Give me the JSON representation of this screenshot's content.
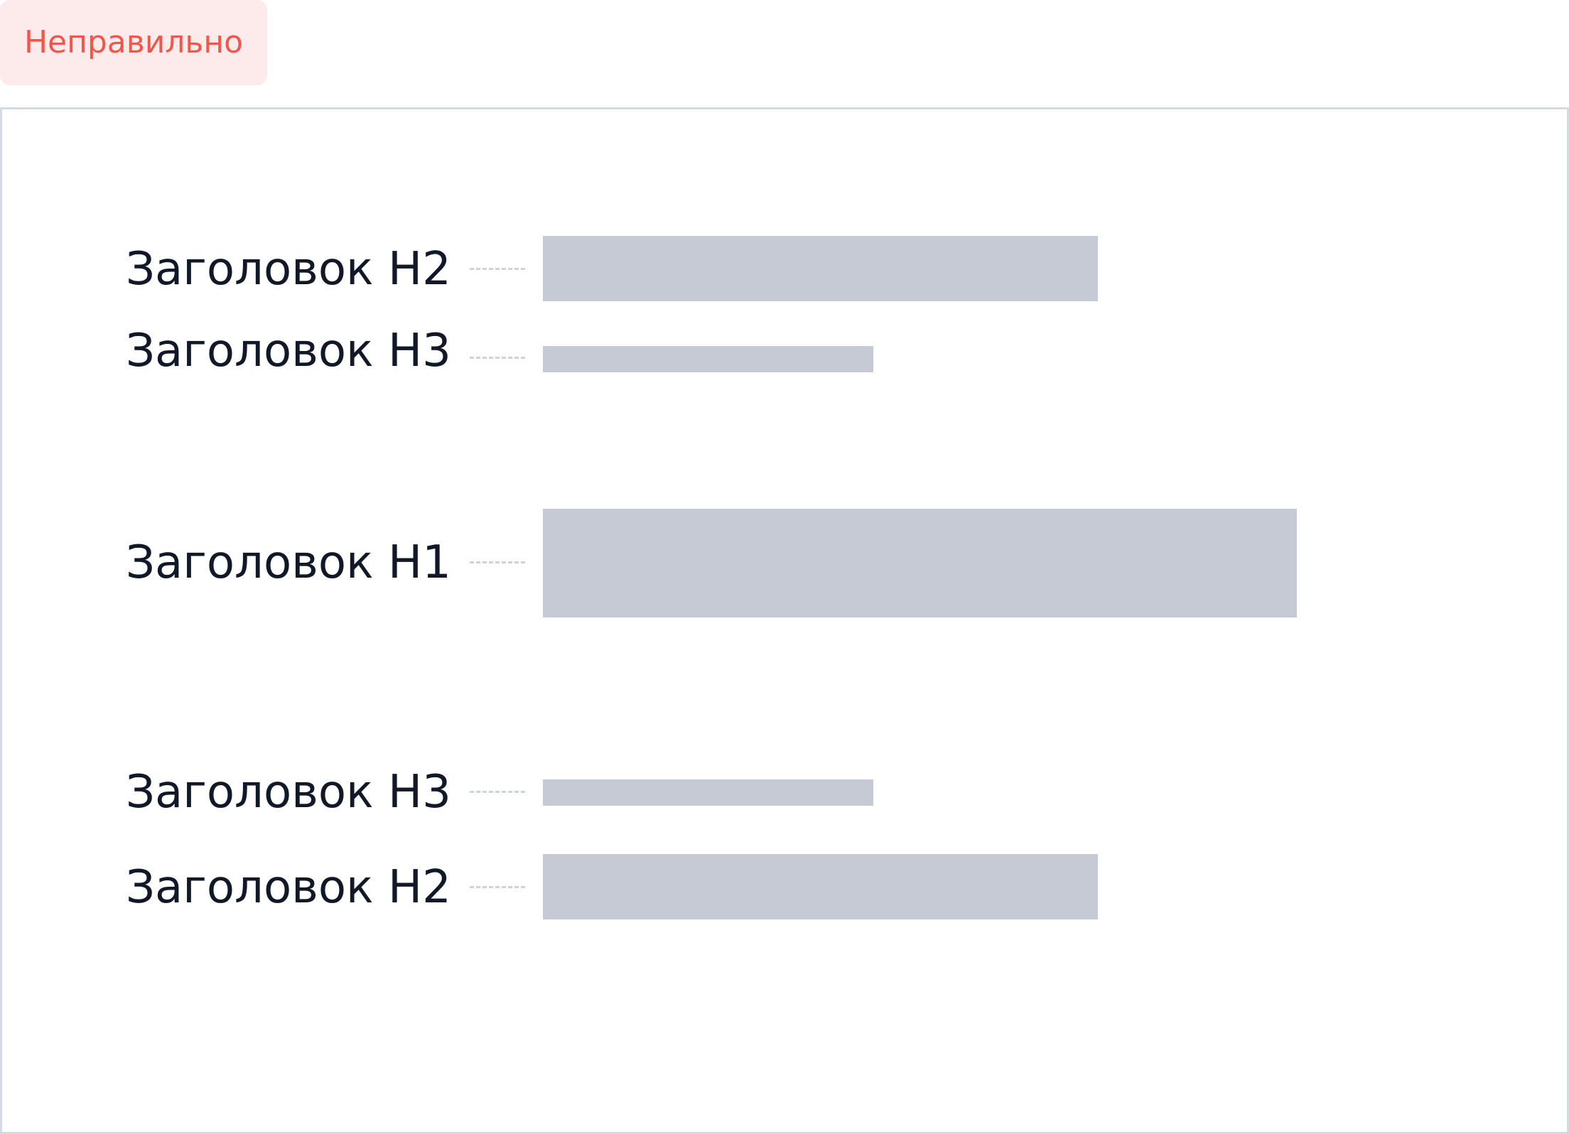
{
  "badge": {
    "label": "Неправильно",
    "text_color": "#f0574a",
    "background": "#fdeaea"
  },
  "colors": {
    "bar": "#c5cad5",
    "frame_border": "#d4dae4",
    "label_text": "#111827",
    "leader": "#cdd3dd"
  },
  "headings": [
    {
      "label": "Заголовок Н2",
      "level": "H2"
    },
    {
      "label": "Заголовок Н3",
      "level": "H3"
    },
    {
      "label": "Заголовок Н1",
      "level": "H1"
    },
    {
      "label": "Заголовок Н3",
      "level": "H3"
    },
    {
      "label": "Заголовок Н2",
      "level": "H2"
    }
  ]
}
